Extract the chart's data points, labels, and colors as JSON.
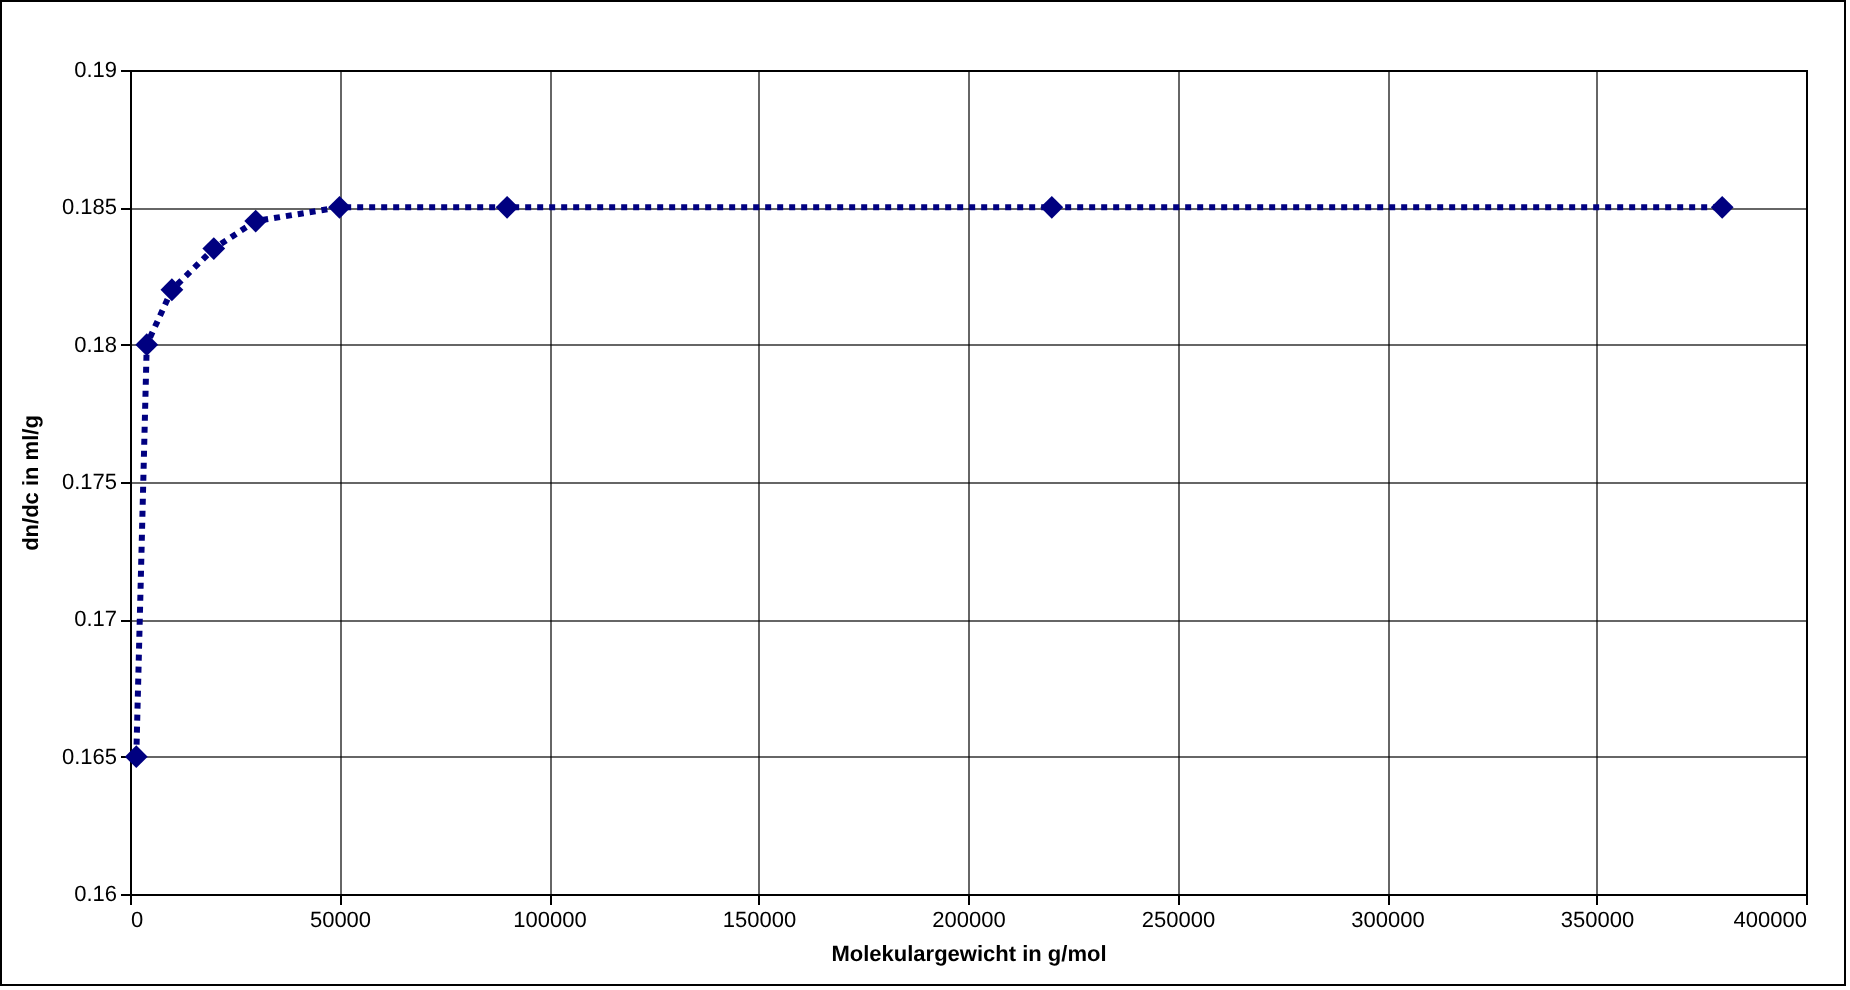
{
  "chart_data": {
    "type": "line",
    "xlabel": "Molekulargewicht in g/mol",
    "ylabel": "dn/dc in ml/g",
    "x": [
      1500,
      4000,
      10000,
      20000,
      30000,
      50000,
      90000,
      220000,
      380000
    ],
    "series": [
      {
        "color": "#000080",
        "values": [
          0.165,
          0.18,
          0.182,
          0.1835,
          0.1845,
          0.185,
          0.185,
          0.185,
          0.185
        ]
      }
    ],
    "xlim": [
      0,
      400000
    ],
    "xticks": [
      0,
      50000,
      100000,
      150000,
      200000,
      250000,
      300000,
      350000,
      400000
    ],
    "ylim": [
      0.16,
      0.19
    ],
    "yticks": [
      {
        "value": 0.16,
        "label": "0.16"
      },
      {
        "value": 0.165,
        "label": "0.165"
      },
      {
        "value": 0.17,
        "label": "0.17"
      },
      {
        "value": 0.175,
        "label": "0.175"
      },
      {
        "value": 0.18,
        "label": "0.18"
      },
      {
        "value": 0.185,
        "label": "0.185"
      },
      {
        "value": 0.19,
        "label": "0.19"
      }
    ],
    "grid": true,
    "marker": "diamond",
    "line_style": "dotted",
    "legend": false
  }
}
